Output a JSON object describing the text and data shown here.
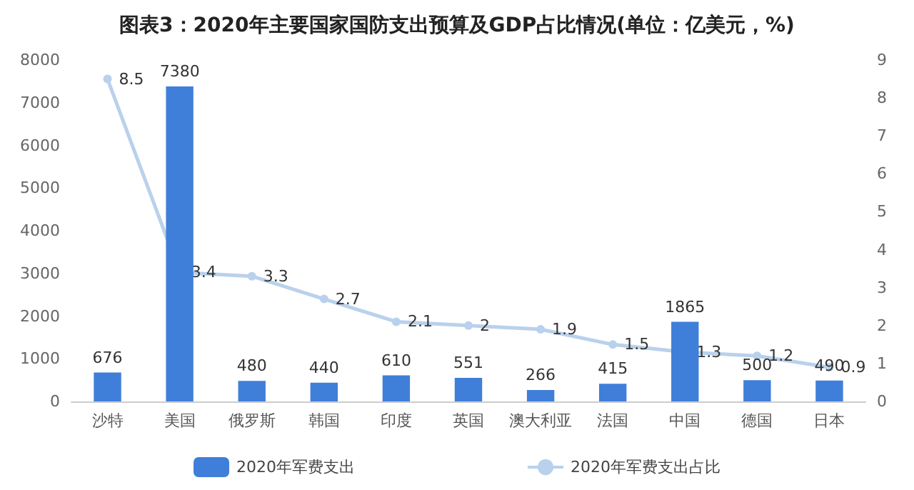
{
  "chart_data": {
    "type": "bar",
    "title": "图表3：2020年主要国家国防支出预算及GDP占比情况(单位：亿美元，%)",
    "categories": [
      "沙特",
      "美国",
      "俄罗斯",
      "韩国",
      "印度",
      "英国",
      "澳大利亚",
      "法国",
      "中国",
      "德国",
      "日本"
    ],
    "series": [
      {
        "name": "2020年军费支出",
        "color": "#3f7fd9",
        "values": [
          676,
          7380,
          480,
          440,
          610,
          551,
          266,
          415,
          1865,
          500,
          490
        ]
      },
      {
        "name": "2020年军费支出占比",
        "type": "line",
        "axis": "y2",
        "color": "#b9d1ec",
        "marker": "circle",
        "values": [
          8.5,
          3.4,
          3.3,
          2.7,
          2.1,
          2,
          1.9,
          1.5,
          1.3,
          1.2,
          0.9
        ]
      }
    ],
    "ylim": [
      0,
      8000
    ],
    "yticks": [
      0,
      1000,
      2000,
      3000,
      4000,
      5000,
      6000,
      7000,
      8000
    ],
    "y2lim": [
      0,
      9
    ],
    "y2ticks": [
      0,
      1,
      2,
      3,
      4,
      5,
      6,
      7,
      8,
      9
    ],
    "data_labels": true,
    "legend": "bottom",
    "grid": false
  }
}
